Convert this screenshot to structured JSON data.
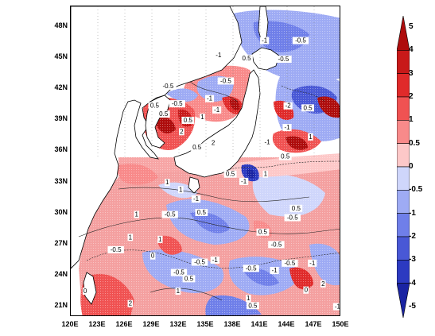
{
  "map": {
    "latitude_labels": [
      "48N",
      "45N",
      "42N",
      "39N",
      "36N",
      "33N",
      "30N",
      "27N",
      "24N",
      "21N"
    ],
    "longitude_labels": [
      "120E",
      "123E",
      "126E",
      "129E",
      "132E",
      "135E",
      "138E",
      "141E",
      "144E",
      "147E",
      "150E"
    ],
    "field_labels": [
      {
        "text": "0.5",
        "lon": 139.5,
        "lat": 44.8
      },
      {
        "text": "-0.5",
        "lon": 145.5,
        "lat": 46.5
      },
      {
        "text": "-1",
        "lon": 136.4,
        "lat": 45.1
      },
      {
        "text": "-1",
        "lon": 141.5,
        "lat": 46.5
      },
      {
        "text": "-0.5",
        "lon": 143.6,
        "lat": 44.7
      },
      {
        "text": "-0.5",
        "lon": 137.2,
        "lat": 42.6
      },
      {
        "text": "-0.5",
        "lon": 130.8,
        "lat": 42.1
      },
      {
        "text": "-0.5",
        "lon": 131.8,
        "lat": 40.4
      },
      {
        "text": "-1",
        "lon": 135.4,
        "lat": 40.9
      },
      {
        "text": "-1",
        "lon": 136.2,
        "lat": 39.8
      },
      {
        "text": "0.5",
        "lon": 129.3,
        "lat": 40.2
      },
      {
        "text": "0.5",
        "lon": 130.3,
        "lat": 39.4
      },
      {
        "text": "0.5",
        "lon": 133.0,
        "lat": 38.8
      },
      {
        "text": "1",
        "lon": 134.6,
        "lat": 39.1
      },
      {
        "text": "2",
        "lon": 132.3,
        "lat": 37.7
      },
      {
        "text": "2",
        "lon": 135.8,
        "lat": 36.6
      },
      {
        "text": "0.5",
        "lon": 134.0,
        "lat": 36.2
      },
      {
        "text": "-2",
        "lon": 144.1,
        "lat": 40.2
      },
      {
        "text": "0.5",
        "lon": 146.3,
        "lat": 40.0
      },
      {
        "text": "-1",
        "lon": 144.0,
        "lat": 38.1
      },
      {
        "text": "1",
        "lon": 146.6,
        "lat": 37.2
      },
      {
        "text": "-1",
        "lon": 141.8,
        "lat": 36.7
      },
      {
        "text": "0.5",
        "lon": 143.8,
        "lat": 35.3
      },
      {
        "text": "1",
        "lon": 141.6,
        "lat": 33.6
      },
      {
        "text": "-1",
        "lon": 139.2,
        "lat": 32.9
      },
      {
        "text": "0.5",
        "lon": 137.7,
        "lat": 33.6
      },
      {
        "text": "1",
        "lon": 130.7,
        "lat": 32.8
      },
      {
        "text": "1",
        "lon": 132.2,
        "lat": 32.1
      },
      {
        "text": "-0.5",
        "lon": 131.0,
        "lat": 29.7
      },
      {
        "text": "0.5",
        "lon": 134.5,
        "lat": 29.9
      },
      {
        "text": "-1",
        "lon": 133.9,
        "lat": 31.2
      },
      {
        "text": "1",
        "lon": 127.3,
        "lat": 29.7
      },
      {
        "text": "1",
        "lon": 126.6,
        "lat": 27.5
      },
      {
        "text": "1",
        "lon": 129.9,
        "lat": 27.3
      },
      {
        "text": "-0.5",
        "lon": 125.0,
        "lat": 26.3
      },
      {
        "text": "0",
        "lon": 129.1,
        "lat": 25.7
      },
      {
        "text": "-0.5",
        "lon": 144.6,
        "lat": 29.4
      },
      {
        "text": "0.5",
        "lon": 145.0,
        "lat": 30.3
      },
      {
        "text": "-0.5",
        "lon": 142.8,
        "lat": 26.8
      },
      {
        "text": "0.5",
        "lon": 141.3,
        "lat": 28.0
      },
      {
        "text": "-0.5",
        "lon": 144.3,
        "lat": 25.0
      },
      {
        "text": "-1",
        "lon": 142.6,
        "lat": 24.3
      },
      {
        "text": "-0.5",
        "lon": 140.0,
        "lat": 24.5
      },
      {
        "text": "-0.5",
        "lon": 134.3,
        "lat": 25.1
      },
      {
        "text": "-1",
        "lon": 136.0,
        "lat": 25.3
      },
      {
        "text": "-0.5",
        "lon": 132.0,
        "lat": 24.1
      },
      {
        "text": "0.5",
        "lon": 133.1,
        "lat": 23.5
      },
      {
        "text": "1",
        "lon": 131.9,
        "lat": 22.3
      },
      {
        "text": "2",
        "lon": 126.6,
        "lat": 21.1
      },
      {
        "text": "0",
        "lon": 121.6,
        "lat": 22.3
      },
      {
        "text": "-1",
        "lon": 146.8,
        "lat": 25.0
      },
      {
        "text": "2",
        "lon": 148.0,
        "lat": 23.0
      },
      {
        "text": "0",
        "lon": 146.1,
        "lat": 22.4
      },
      {
        "text": "1",
        "lon": 139.7,
        "lat": 21.6
      },
      {
        "text": "0.5",
        "lon": 140.2,
        "lat": 20.9
      },
      {
        "text": "-1",
        "lon": 149.6,
        "lat": 20.8
      }
    ]
  },
  "colorbar": {
    "labels": [
      "5",
      "4",
      "3",
      "2",
      "1",
      "0.5",
      "0",
      "-0.5",
      "-1",
      "-2",
      "-3",
      "-4",
      "-5"
    ],
    "colors": [
      "#ae0d0d",
      "#c81919",
      "#e02a2a",
      "#f05252",
      "#f88a8a",
      "#fdc8c8",
      "#cfd6fb",
      "#9eabf4",
      "#6f7fe9",
      "#4958d6",
      "#2c3ac1",
      "#1a24a3"
    ]
  }
}
